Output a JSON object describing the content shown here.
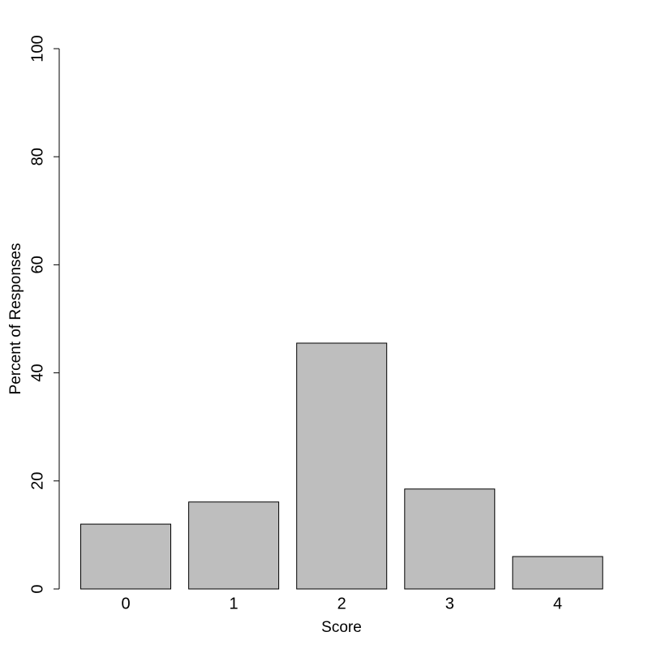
{
  "chart_data": {
    "type": "bar",
    "categories": [
      "0",
      "1",
      "2",
      "3",
      "4"
    ],
    "values": [
      12,
      16.1,
      45.5,
      18.5,
      6
    ],
    "color": "#bebebe",
    "xlabel": "Score",
    "ylabel": "Percent of Responses",
    "ylim": [
      0,
      100
    ],
    "yticks": [
      0,
      20,
      40,
      60,
      80,
      100
    ]
  }
}
